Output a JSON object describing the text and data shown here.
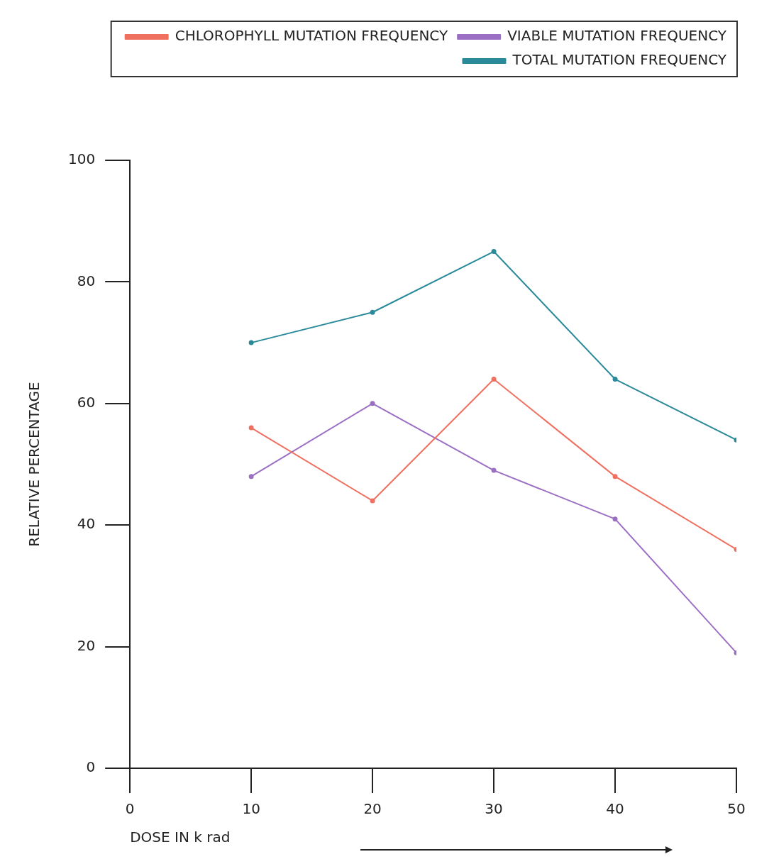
{
  "chart_data": {
    "type": "line",
    "xlabel": "DOSE IN k rad",
    "ylabel": "RELATIVE PERCENTAGE",
    "x": [
      10,
      20,
      30,
      40,
      50
    ],
    "series": [
      {
        "name": "CHLOROPHYLL MUTATION FREQUENCY",
        "color": "#f07060",
        "values": [
          56,
          44,
          64,
          48,
          36
        ]
      },
      {
        "name": "VIABLE MUTATION FREQUENCY",
        "color": "#9b6fc4",
        "values": [
          48,
          60,
          49,
          41,
          19
        ]
      },
      {
        "name": "TOTAL MUTATION FREQUENCY",
        "color": "#2a8a9a",
        "values": [
          70,
          75,
          85,
          64,
          54
        ]
      }
    ],
    "xlim": [
      0,
      50
    ],
    "xticks": [
      0,
      10,
      20,
      30,
      40,
      50
    ],
    "ylim": [
      0,
      100
    ],
    "yticks": [
      0,
      20,
      40,
      60,
      80,
      100
    ],
    "grid": false,
    "legend": "top right",
    "marker": "circle",
    "line_style": "solid"
  }
}
